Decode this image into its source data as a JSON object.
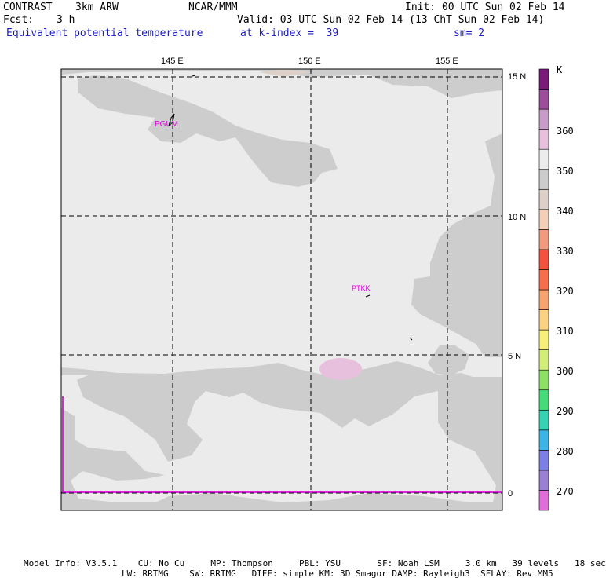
{
  "header": {
    "model": "CONTRAST",
    "resolution": "3km ARW",
    "org": "NCAR/MMM",
    "init": "Init: 00 UTC Sun 02 Feb 14",
    "fcst_label": "Fcst:",
    "fcst_value": "3 h",
    "valid": "Valid: 03 UTC Sun 02 Feb 14 (13 ChT Sun 02 Feb 14)",
    "field": "Equivalent potential temperature",
    "level": "at k-index =  39",
    "smoothing": "sm= 2"
  },
  "map": {
    "lon_labels": [
      "145 E",
      "150 E",
      "155 E"
    ],
    "lat_labels": [
      "15 N",
      "10 N",
      "5 N",
      "0"
    ],
    "stations": [
      {
        "id": "PGUM",
        "label": "PGUM"
      },
      {
        "id": "PTKK",
        "label": "PTKK"
      }
    ]
  },
  "colorbar": {
    "unit": "K",
    "levels": [
      "270",
      "280",
      "290",
      "300",
      "310",
      "320",
      "330",
      "340",
      "350",
      "360"
    ],
    "colors": [
      "#e06ed8",
      "#9b7fd4",
      "#7b7fe6",
      "#3cb4e6",
      "#36d2b4",
      "#44dc78",
      "#8ce064",
      "#d2ee78",
      "#f6f078",
      "#fad282",
      "#f8a270",
      "#f66e4a",
      "#f4523c",
      "#f29a7e",
      "#f3cfba",
      "#dcd0c8",
      "#cccccc",
      "#ececec",
      "#e6c0dc",
      "#c89cc8",
      "#9c4e9c",
      "#7c1a7c"
    ]
  },
  "footer": {
    "line1": "Model Info: V3.5.1    CU: No Cu     MP: Thompson     PBL: YSU       SF: Noah LSM     3.0 km   39 levels   18 sec",
    "line2": "LW: RRTMG    SW: RRTMG   DIFF: simple KM: 3D Smagor DAMP: Rayleigh3  SFLAY: Rev MM5"
  }
}
